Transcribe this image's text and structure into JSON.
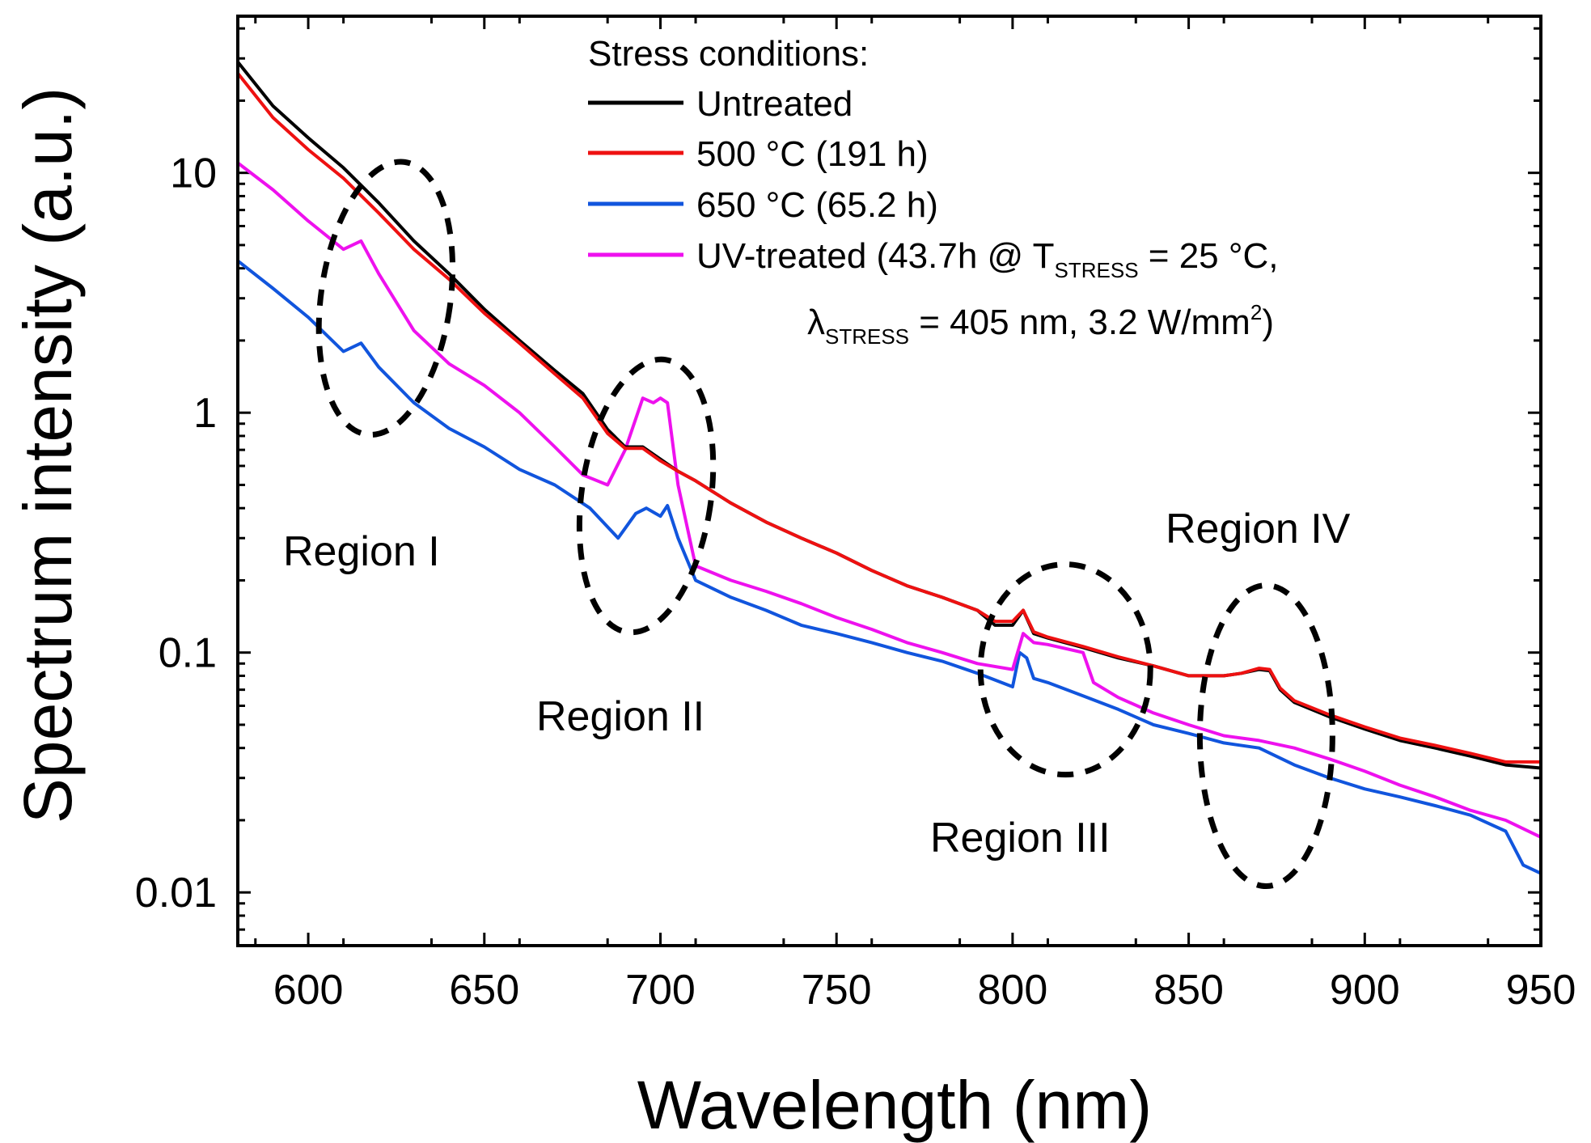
{
  "chart_data": {
    "type": "line",
    "xlabel": "Wavelength (nm)",
    "ylabel": "Spectrum intensity (a.u.)",
    "xlim": [
      580,
      950
    ],
    "ylim": [
      0.006,
      45
    ],
    "yscale": "log",
    "xticks": [
      600,
      650,
      700,
      750,
      800,
      850,
      900,
      950
    ],
    "xtick_labels": [
      "600",
      "650",
      "700",
      "750",
      "800",
      "850",
      "900",
      "950"
    ],
    "yticks": [
      0.01,
      0.1,
      1,
      10
    ],
    "ytick_labels": [
      "0.01",
      "0.1",
      "1",
      "10"
    ],
    "legend": {
      "title": "Stress conditions:",
      "position": "top-right",
      "entries": [
        "Untreated",
        "500 °C (191 h)",
        "650 °C (65.2 h)"
      ],
      "uv_line1": {
        "prefix": "UV-treated (43.7h @ T",
        "sub": "STRESS",
        "suffix": " = 25 °C,"
      },
      "uv_line2": {
        "prefix": "λ",
        "sub": "STRESS",
        "mid": " = 405 nm, 3.2 W/mm",
        "sup": "2",
        "suffix": ")"
      }
    },
    "series": [
      {
        "name": "Untreated",
        "color": "#000000",
        "x": [
          580,
          590,
          600,
          610,
          620,
          630,
          640,
          650,
          660,
          670,
          678,
          685,
          690,
          695,
          700,
          705,
          710,
          720,
          730,
          740,
          750,
          760,
          770,
          780,
          790,
          795,
          800,
          803,
          806,
          810,
          820,
          830,
          840,
          850,
          860,
          865,
          870,
          873,
          876,
          880,
          890,
          900,
          910,
          920,
          930,
          940,
          950
        ],
        "y": [
          29,
          19,
          14,
          10.5,
          7.5,
          5.2,
          3.8,
          2.7,
          2.0,
          1.5,
          1.2,
          0.85,
          0.72,
          0.72,
          0.64,
          0.57,
          0.52,
          0.42,
          0.35,
          0.3,
          0.26,
          0.22,
          0.19,
          0.17,
          0.15,
          0.13,
          0.13,
          0.15,
          0.12,
          0.115,
          0.105,
          0.095,
          0.088,
          0.08,
          0.08,
          0.082,
          0.085,
          0.084,
          0.07,
          0.062,
          0.054,
          0.048,
          0.043,
          0.04,
          0.037,
          0.034,
          0.033
        ]
      },
      {
        "name": "500 °C (191 h)",
        "color": "#ee1111",
        "x": [
          580,
          590,
          600,
          610,
          620,
          630,
          640,
          650,
          660,
          670,
          678,
          685,
          690,
          695,
          700,
          705,
          710,
          720,
          730,
          740,
          750,
          760,
          770,
          780,
          790,
          795,
          800,
          803,
          806,
          810,
          820,
          830,
          840,
          850,
          860,
          865,
          870,
          873,
          876,
          880,
          890,
          900,
          910,
          920,
          930,
          940,
          950
        ],
        "y": [
          26,
          17,
          12.5,
          9.5,
          6.8,
          4.8,
          3.6,
          2.6,
          1.95,
          1.45,
          1.15,
          0.82,
          0.71,
          0.71,
          0.63,
          0.57,
          0.52,
          0.42,
          0.35,
          0.3,
          0.26,
          0.22,
          0.19,
          0.17,
          0.15,
          0.135,
          0.135,
          0.15,
          0.122,
          0.116,
          0.106,
          0.096,
          0.088,
          0.08,
          0.08,
          0.082,
          0.086,
          0.085,
          0.071,
          0.063,
          0.055,
          0.049,
          0.044,
          0.041,
          0.038,
          0.035,
          0.035
        ]
      },
      {
        "name": "650 °C (65.2 h)",
        "color": "#1155dd",
        "x": [
          580,
          590,
          600,
          610,
          615,
          620,
          630,
          640,
          650,
          660,
          670,
          680,
          688,
          693,
          696,
          700,
          702,
          705,
          710,
          720,
          730,
          740,
          750,
          760,
          770,
          780,
          790,
          800,
          802,
          804,
          806,
          810,
          820,
          830,
          840,
          850,
          860,
          870,
          880,
          890,
          900,
          910,
          920,
          930,
          940,
          945,
          950
        ],
        "y": [
          4.3,
          3.3,
          2.5,
          1.8,
          1.95,
          1.55,
          1.1,
          0.86,
          0.72,
          0.58,
          0.5,
          0.4,
          0.3,
          0.38,
          0.4,
          0.37,
          0.41,
          0.3,
          0.2,
          0.17,
          0.15,
          0.13,
          0.12,
          0.11,
          0.1,
          0.092,
          0.082,
          0.072,
          0.1,
          0.095,
          0.078,
          0.075,
          0.066,
          0.058,
          0.05,
          0.046,
          0.042,
          0.04,
          0.034,
          0.03,
          0.027,
          0.025,
          0.023,
          0.021,
          0.018,
          0.013,
          0.012
        ]
      },
      {
        "name": "UV-treated (43.7h @ TSTRESS = 25 °C, λSTRESS = 405 nm, 3.2 W/mm2)",
        "color": "#ee11ee",
        "x": [
          580,
          590,
          600,
          610,
          615,
          620,
          630,
          640,
          650,
          660,
          670,
          678,
          685,
          690,
          695,
          698,
          700,
          702,
          705,
          710,
          720,
          730,
          740,
          750,
          760,
          770,
          780,
          790,
          800,
          803,
          806,
          810,
          820,
          823,
          830,
          840,
          850,
          860,
          870,
          880,
          890,
          900,
          910,
          920,
          930,
          940,
          950
        ],
        "y": [
          11,
          8.5,
          6.3,
          4.8,
          5.2,
          3.8,
          2.2,
          1.6,
          1.3,
          1.0,
          0.72,
          0.55,
          0.5,
          0.7,
          1.15,
          1.1,
          1.15,
          1.1,
          0.5,
          0.23,
          0.2,
          0.18,
          0.16,
          0.14,
          0.125,
          0.11,
          0.1,
          0.09,
          0.085,
          0.12,
          0.11,
          0.108,
          0.1,
          0.075,
          0.065,
          0.056,
          0.05,
          0.045,
          0.043,
          0.04,
          0.036,
          0.032,
          0.028,
          0.025,
          0.022,
          0.02,
          0.017
        ]
      }
    ],
    "annotations": [
      {
        "label": "Region I",
        "cx": 622,
        "cy": 3.0
      },
      {
        "label": "Region II",
        "cx": 696,
        "cy": 0.45
      },
      {
        "label": "Region III",
        "cx": 815,
        "cy": 0.085
      },
      {
        "label": "Region IV",
        "cx": 872,
        "cy": 0.045
      }
    ]
  }
}
